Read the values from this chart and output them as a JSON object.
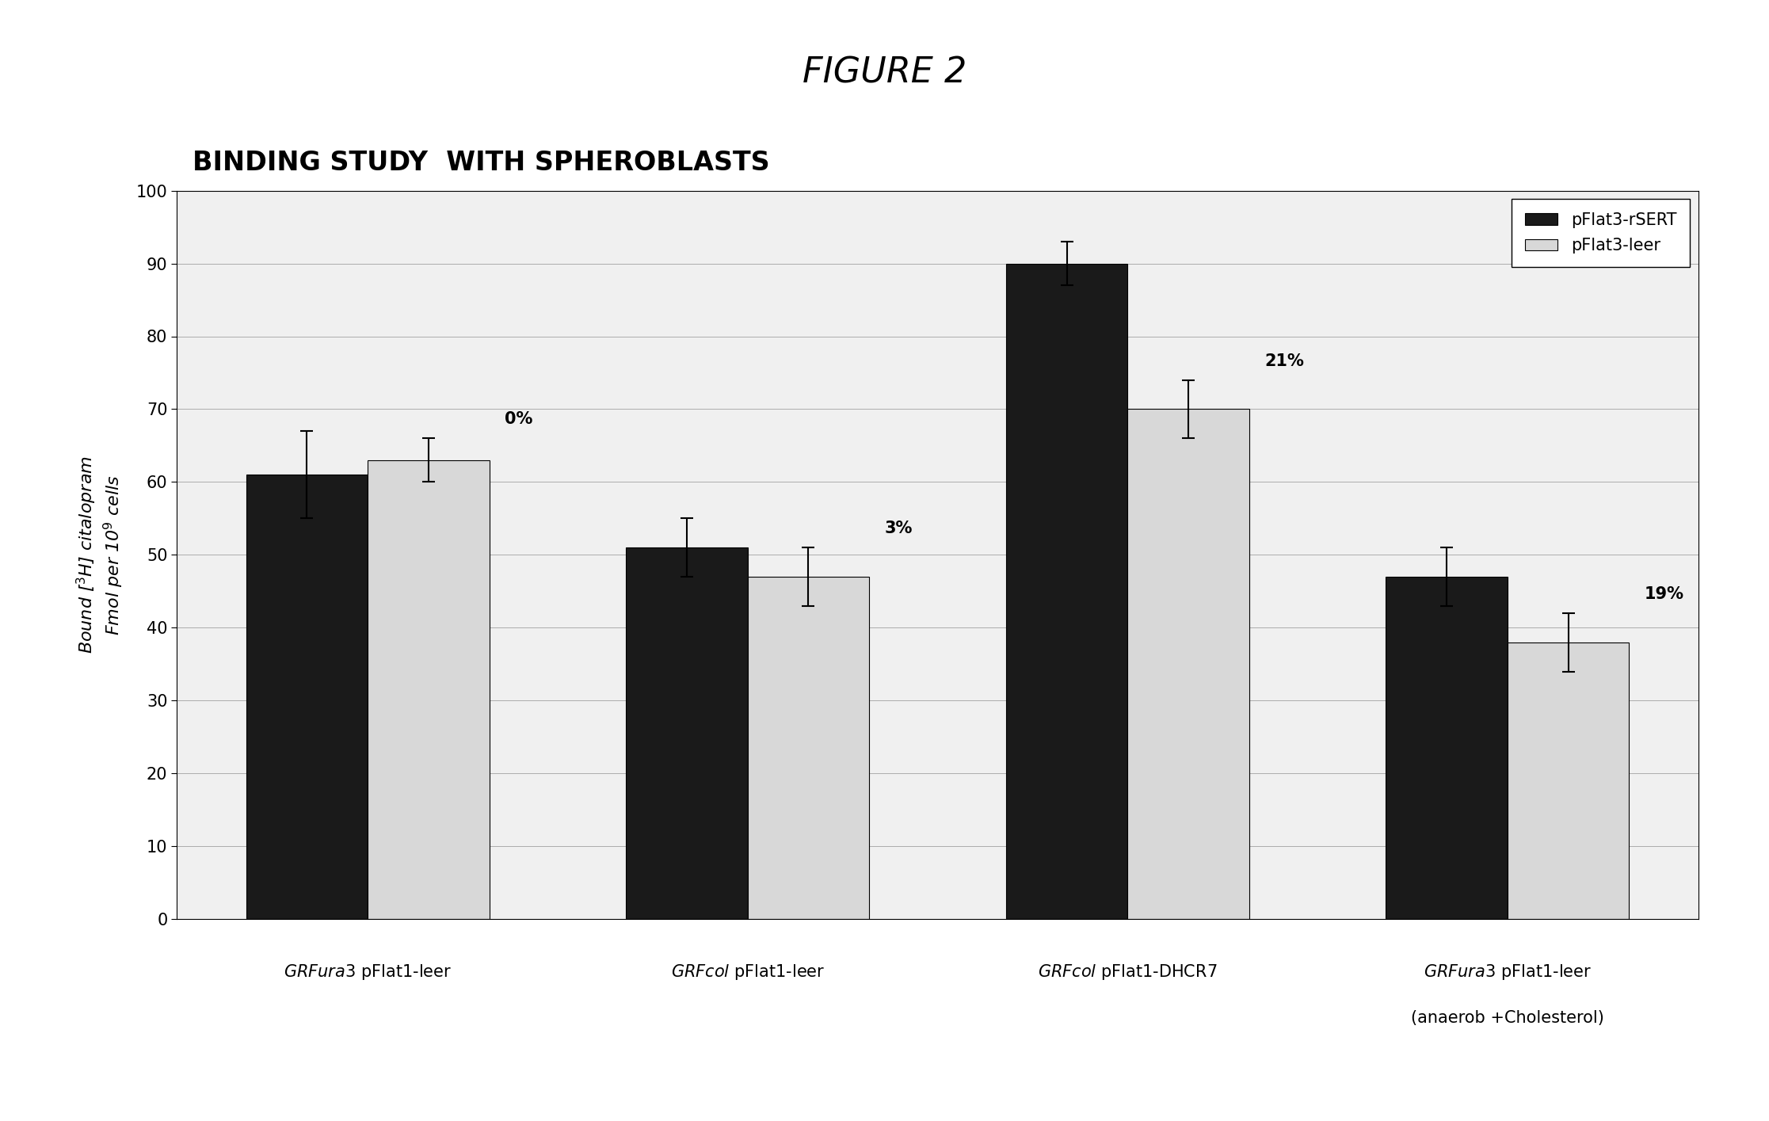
{
  "title": "FIGURE 2",
  "chart_title": "BINDING STUDY  WITH SPHEROBLASTS",
  "ylabel": "Bound [3H] citalopram\nFmol per 10^9 cells",
  "ylim": [
    0,
    100
  ],
  "yticks": [
    0,
    10,
    20,
    30,
    40,
    50,
    60,
    70,
    80,
    90,
    100
  ],
  "dark_values": [
    61,
    51,
    90,
    47
  ],
  "light_values": [
    63,
    47,
    70,
    38
  ],
  "dark_errors": [
    6,
    4,
    3,
    4
  ],
  "light_errors": [
    3,
    4,
    4,
    4
  ],
  "percentage_labels": [
    "0%",
    "3%",
    "21%",
    "19%"
  ],
  "dark_color": "#1a1a1a",
  "light_color": "#d8d8d8",
  "legend_dark_label": "pFlat3-rSERT",
  "legend_light_label": "pFlat3-leer",
  "bar_width": 0.32,
  "background_color": "#ffffff",
  "title_fontsize": 32,
  "chart_title_fontsize": 24,
  "tick_fontsize": 15,
  "label_fontsize": 16,
  "legend_fontsize": 15,
  "pct_fontsize": 15
}
